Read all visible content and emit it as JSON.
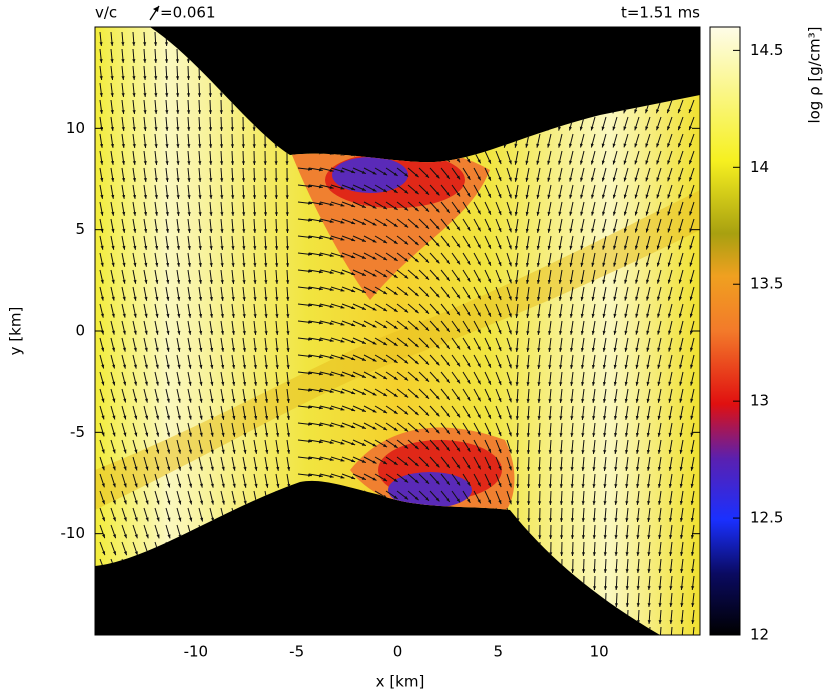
{
  "chart_data": {
    "type": "field",
    "velocity_label": "v/c",
    "velocity_scale": "=0.061",
    "time_label": "t=1.51 ms",
    "x_label": "x [km]",
    "y_label": "y [km]",
    "xlim": [
      -15,
      15
    ],
    "ylim": [
      -15,
      15
    ],
    "xticks": [
      -10,
      -5,
      0,
      5,
      10
    ],
    "yticks": [
      -10,
      -5,
      0,
      5,
      10
    ],
    "colorbar_label": "log ρ [g/cm³]",
    "clim": [
      12,
      14.6
    ],
    "cticks": [
      12,
      12.5,
      13,
      13.5,
      14,
      14.5
    ]
  }
}
